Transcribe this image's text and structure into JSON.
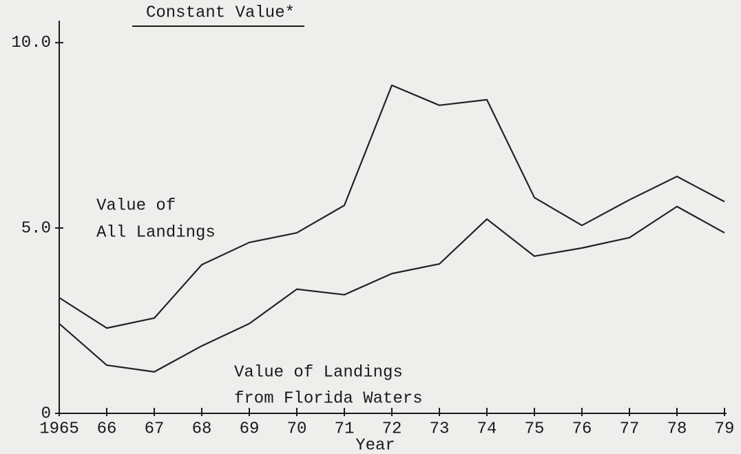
{
  "chart_data": {
    "type": "line",
    "title": "Constant Value*",
    "xlabel": "Year",
    "categories": [
      "1965",
      "66",
      "67",
      "68",
      "69",
      "70",
      "71",
      "72",
      "73",
      "74",
      "75",
      "76",
      "77",
      "78",
      "79"
    ],
    "series": [
      {
        "color": "#222222",
        "values": [
          3.12,
          2.3,
          2.57,
          4.01,
          4.61,
          4.87,
          5.61,
          8.85,
          8.31,
          8.46,
          5.82,
          5.07,
          5.76,
          6.39,
          5.71
        ]
      },
      {
        "color": "#222222",
        "values": [
          2.42,
          1.3,
          1.12,
          1.82,
          2.42,
          3.35,
          3.2,
          3.77,
          4.03,
          5.24,
          4.24,
          4.46,
          4.74,
          5.58,
          4.87
        ]
      }
    ],
    "annotations": [
      "Value of",
      "All Landings",
      "Value of Landings",
      "from Florida Waters"
    ],
    "ylim": [
      0,
      10.5
    ],
    "yticks": [
      0,
      {
        "value": 5,
        "label": "5.0"
      },
      {
        "value": 10,
        "label": "10.0"
      }
    ],
    "grid": false
  }
}
